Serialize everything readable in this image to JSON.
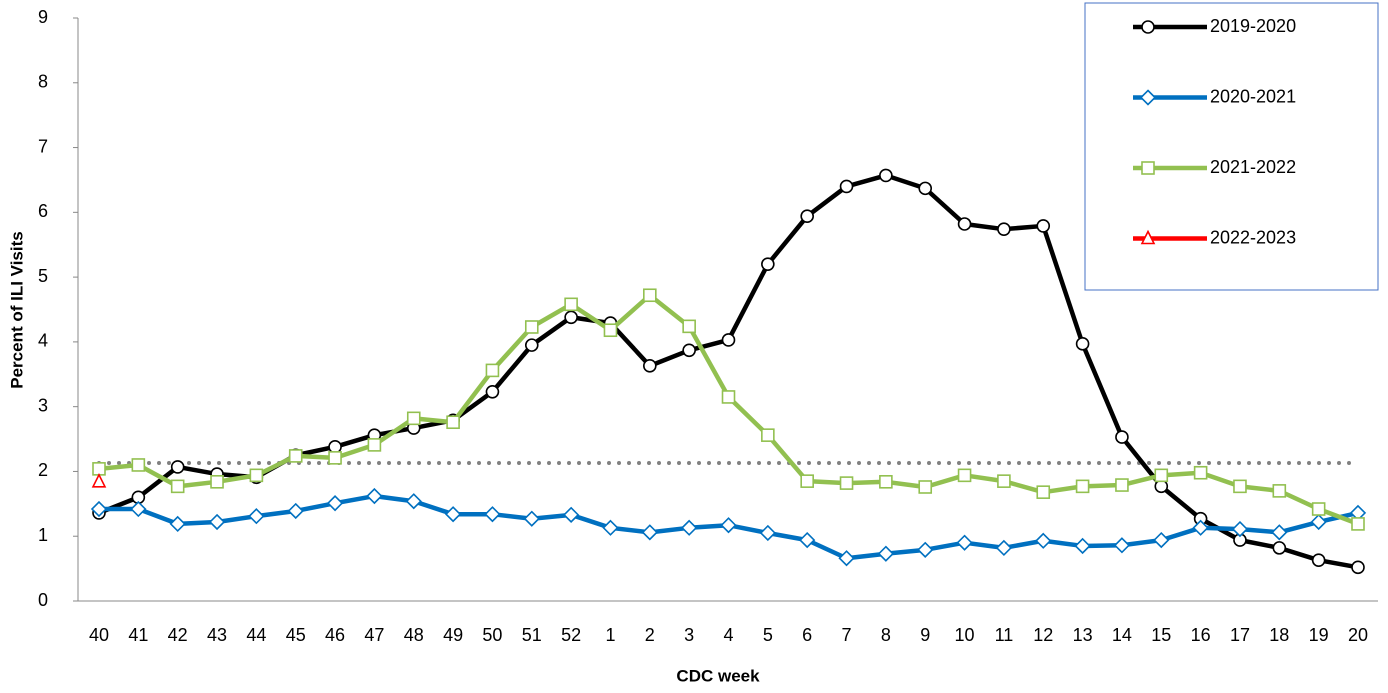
{
  "chart_data": {
    "type": "line",
    "x_label": "CDC week",
    "y_label": "Percent of ILI Visits",
    "categories": [
      "40",
      "41",
      "42",
      "43",
      "44",
      "45",
      "46",
      "47",
      "48",
      "49",
      "50",
      "51",
      "52",
      "1",
      "2",
      "3",
      "4",
      "5",
      "6",
      "7",
      "8",
      "9",
      "10",
      "11",
      "12",
      "13",
      "14",
      "15",
      "16",
      "17",
      "18",
      "19",
      "20"
    ],
    "series": [
      {
        "name": "2019-2020",
        "color": "#000000",
        "marker": "circle",
        "values": [
          1.36,
          1.6,
          2.07,
          1.96,
          1.91,
          2.25,
          2.38,
          2.56,
          2.67,
          2.79,
          3.23,
          3.95,
          4.38,
          4.29,
          3.63,
          3.87,
          4.03,
          5.2,
          5.94,
          6.4,
          6.57,
          6.37,
          5.82,
          5.74,
          5.79,
          3.97,
          2.53,
          1.77,
          1.27,
          0.94,
          0.82,
          0.63,
          0.52
        ]
      },
      {
        "name": "2020-2021",
        "color": "#0070c0",
        "marker": "diamond",
        "values": [
          1.42,
          1.42,
          1.19,
          1.22,
          1.31,
          1.39,
          1.51,
          1.62,
          1.54,
          1.34,
          1.34,
          1.27,
          1.33,
          1.13,
          1.06,
          1.13,
          1.17,
          1.05,
          0.94,
          0.66,
          0.73,
          0.79,
          0.9,
          0.82,
          0.93,
          0.85,
          0.86,
          0.94,
          1.13,
          1.11,
          1.06,
          1.22,
          1.36
        ]
      },
      {
        "name": "2021-2022",
        "color": "#92c050",
        "marker": "square",
        "values": [
          2.04,
          2.1,
          1.77,
          1.84,
          1.94,
          2.24,
          2.21,
          2.41,
          2.82,
          2.76,
          3.56,
          4.23,
          4.58,
          4.18,
          4.72,
          4.24,
          3.15,
          2.56,
          1.85,
          1.82,
          1.84,
          1.76,
          1.94,
          1.85,
          1.68,
          1.77,
          1.79,
          1.94,
          1.98,
          1.77,
          1.7,
          1.42,
          1.19
        ]
      },
      {
        "name": "2022-2023",
        "color": "#ff0000",
        "marker": "triangle",
        "values": [
          1.84,
          null,
          null,
          null,
          null,
          null,
          null,
          null,
          null,
          null,
          null,
          null,
          null,
          null,
          null,
          null,
          null,
          null,
          null,
          null,
          null,
          null,
          null,
          null,
          null,
          null,
          null,
          null,
          null,
          null,
          null,
          null,
          null
        ]
      }
    ],
    "reference_line": {
      "value": 2.13,
      "color": "#808080",
      "style": "dotted"
    },
    "ylim": [
      0,
      9
    ],
    "yticks": [
      0,
      1,
      2,
      3,
      4,
      5,
      6,
      7,
      8,
      9
    ],
    "legend": "top-right",
    "legend_border_color": "#4472c4"
  }
}
